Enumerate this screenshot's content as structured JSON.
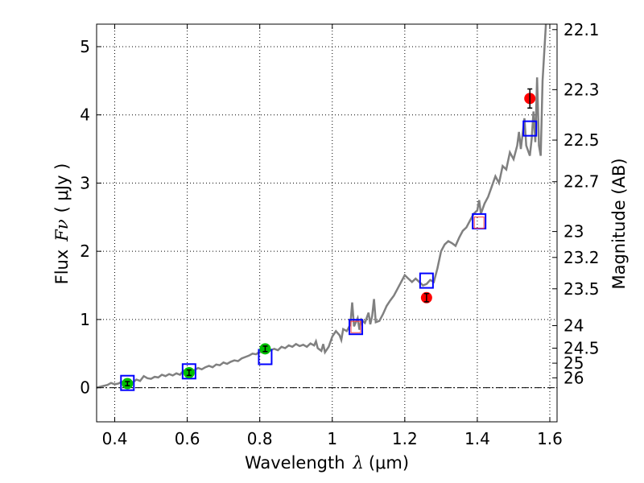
{
  "chart_data": {
    "type": "scatter",
    "xlabel": {
      "prefix": "Wavelength",
      "symbol": "λ",
      "unit": "(μm)"
    },
    "ylabel": {
      "prefix": "Flux",
      "symbol": "Fν",
      "unit": "( μJy )"
    },
    "y2label": "Magnitude (AB)",
    "xlim": [
      0.35,
      1.62
    ],
    "ylim": [
      -0.5,
      5.33
    ],
    "grid": true,
    "x_ticks": [
      0.4,
      0.6,
      0.8,
      1.0,
      1.2,
      1.4,
      1.6
    ],
    "x_tick_labels": [
      "0.4",
      "0.6",
      "0.8",
      "1",
      "1.2",
      "1.4",
      "1.6"
    ],
    "y_ticks": [
      0,
      1,
      2,
      3,
      4,
      5
    ],
    "y_tick_labels": [
      "0",
      "1",
      "2",
      "3",
      "4",
      "5"
    ],
    "mag_ticks": [
      {
        "label": "22.1",
        "flux": 5.25
      },
      {
        "label": "22.3",
        "flux": 4.37
      },
      {
        "label": "22.5",
        "flux": 3.63
      },
      {
        "label": "22.7",
        "flux": 3.02
      },
      {
        "label": "23",
        "flux": 2.29
      },
      {
        "label": "23.2",
        "flux": 1.91
      },
      {
        "label": "23.5",
        "flux": 1.45
      },
      {
        "label": "24",
        "flux": 0.91
      },
      {
        "label": "24.5",
        "flux": 0.58
      },
      {
        "label": "25",
        "flux": 0.36
      },
      {
        "label": "26",
        "flux": 0.145
      }
    ],
    "zero_line": 0,
    "series": [
      {
        "kind": "spectrum",
        "color": "#808080",
        "points": [
          [
            0.35,
            0.0
          ],
          [
            0.365,
            0.02
          ],
          [
            0.38,
            0.04
          ],
          [
            0.39,
            0.07
          ],
          [
            0.4,
            0.05
          ],
          [
            0.41,
            0.06
          ],
          [
            0.42,
            0.09
          ],
          [
            0.43,
            0.06
          ],
          [
            0.44,
            0.1
          ],
          [
            0.45,
            0.08
          ],
          [
            0.46,
            0.12
          ],
          [
            0.47,
            0.1
          ],
          [
            0.48,
            0.17
          ],
          [
            0.49,
            0.14
          ],
          [
            0.5,
            0.13
          ],
          [
            0.51,
            0.16
          ],
          [
            0.52,
            0.15
          ],
          [
            0.53,
            0.19
          ],
          [
            0.54,
            0.17
          ],
          [
            0.55,
            0.2
          ],
          [
            0.56,
            0.18
          ],
          [
            0.57,
            0.21
          ],
          [
            0.58,
            0.19
          ],
          [
            0.59,
            0.25
          ],
          [
            0.6,
            0.22
          ],
          [
            0.61,
            0.24
          ],
          [
            0.62,
            0.26
          ],
          [
            0.63,
            0.29
          ],
          [
            0.64,
            0.27
          ],
          [
            0.65,
            0.3
          ],
          [
            0.66,
            0.32
          ],
          [
            0.67,
            0.3
          ],
          [
            0.68,
            0.34
          ],
          [
            0.69,
            0.33
          ],
          [
            0.7,
            0.37
          ],
          [
            0.71,
            0.35
          ],
          [
            0.72,
            0.38
          ],
          [
            0.73,
            0.4
          ],
          [
            0.74,
            0.39
          ],
          [
            0.75,
            0.43
          ],
          [
            0.76,
            0.45
          ],
          [
            0.77,
            0.47
          ],
          [
            0.78,
            0.5
          ],
          [
            0.79,
            0.49
          ],
          [
            0.8,
            0.53
          ],
          [
            0.81,
            0.51
          ],
          [
            0.82,
            0.52
          ],
          [
            0.83,
            0.55
          ],
          [
            0.84,
            0.57
          ],
          [
            0.85,
            0.55
          ],
          [
            0.86,
            0.6
          ],
          [
            0.87,
            0.58
          ],
          [
            0.88,
            0.62
          ],
          [
            0.89,
            0.6
          ],
          [
            0.9,
            0.64
          ],
          [
            0.91,
            0.61
          ],
          [
            0.92,
            0.63
          ],
          [
            0.93,
            0.6
          ],
          [
            0.94,
            0.65
          ],
          [
            0.95,
            0.62
          ],
          [
            0.955,
            0.68
          ],
          [
            0.96,
            0.58
          ],
          [
            0.97,
            0.54
          ],
          [
            0.975,
            0.64
          ],
          [
            0.98,
            0.52
          ],
          [
            0.99,
            0.6
          ],
          [
            1.0,
            0.75
          ],
          [
            1.01,
            0.83
          ],
          [
            1.02,
            0.77
          ],
          [
            1.025,
            0.7
          ],
          [
            1.03,
            0.86
          ],
          [
            1.04,
            0.83
          ],
          [
            1.05,
            0.93
          ],
          [
            1.055,
            1.25
          ],
          [
            1.06,
            0.9
          ],
          [
            1.07,
            1.02
          ],
          [
            1.075,
            0.85
          ],
          [
            1.08,
            1.0
          ],
          [
            1.09,
            0.95
          ],
          [
            1.1,
            1.1
          ],
          [
            1.105,
            0.93
          ],
          [
            1.11,
            1.05
          ],
          [
            1.115,
            1.3
          ],
          [
            1.12,
            0.96
          ],
          [
            1.13,
            0.98
          ],
          [
            1.14,
            1.08
          ],
          [
            1.15,
            1.2
          ],
          [
            1.16,
            1.28
          ],
          [
            1.17,
            1.35
          ],
          [
            1.18,
            1.45
          ],
          [
            1.19,
            1.55
          ],
          [
            1.2,
            1.65
          ],
          [
            1.21,
            1.6
          ],
          [
            1.22,
            1.55
          ],
          [
            1.23,
            1.6
          ],
          [
            1.24,
            1.55
          ],
          [
            1.25,
            1.5
          ],
          [
            1.26,
            1.52
          ],
          [
            1.27,
            1.58
          ],
          [
            1.28,
            1.55
          ],
          [
            1.29,
            1.75
          ],
          [
            1.3,
            2.0
          ],
          [
            1.31,
            2.1
          ],
          [
            1.32,
            2.15
          ],
          [
            1.33,
            2.12
          ],
          [
            1.34,
            2.08
          ],
          [
            1.35,
            2.2
          ],
          [
            1.36,
            2.3
          ],
          [
            1.37,
            2.35
          ],
          [
            1.38,
            2.45
          ],
          [
            1.39,
            2.55
          ],
          [
            1.4,
            2.6
          ],
          [
            1.405,
            2.75
          ],
          [
            1.41,
            2.55
          ],
          [
            1.42,
            2.7
          ],
          [
            1.43,
            2.8
          ],
          [
            1.44,
            2.95
          ],
          [
            1.45,
            3.1
          ],
          [
            1.46,
            3.0
          ],
          [
            1.47,
            3.25
          ],
          [
            1.48,
            3.2
          ],
          [
            1.49,
            3.45
          ],
          [
            1.5,
            3.35
          ],
          [
            1.51,
            3.55
          ],
          [
            1.515,
            3.75
          ],
          [
            1.52,
            3.5
          ],
          [
            1.53,
            3.95
          ],
          [
            1.535,
            3.55
          ],
          [
            1.545,
            3.4
          ],
          [
            1.55,
            3.65
          ],
          [
            1.555,
            4.05
          ],
          [
            1.56,
            3.6
          ],
          [
            1.565,
            4.55
          ],
          [
            1.57,
            3.55
          ],
          [
            1.575,
            3.4
          ],
          [
            1.58,
            4.5
          ],
          [
            1.59,
            5.4
          ]
        ]
      },
      {
        "kind": "model-boxes",
        "color": "#0000ff",
        "points": [
          {
            "x": 0.435,
            "y": 0.07
          },
          {
            "x": 0.605,
            "y": 0.24
          },
          {
            "x": 0.815,
            "y": 0.45
          },
          {
            "x": 1.065,
            "y": 0.89
          },
          {
            "x": 1.26,
            "y": 1.57
          },
          {
            "x": 1.405,
            "y": 2.44
          },
          {
            "x": 1.545,
            "y": 3.8
          }
        ]
      },
      {
        "kind": "model-boxes-inner",
        "color": "#ff4040",
        "points": [
          {
            "x": 1.065,
            "y": 0.89
          },
          {
            "x": 1.405,
            "y": 2.42
          }
        ]
      },
      {
        "kind": "observed-green",
        "color": "#00c000",
        "points": [
          {
            "x": 0.435,
            "y": 0.06,
            "err": 0.03
          },
          {
            "x": 0.605,
            "y": 0.22,
            "err": 0.04
          },
          {
            "x": 0.815,
            "y": 0.57,
            "err": 0.04
          }
        ]
      },
      {
        "kind": "observed-red",
        "color": "#ff0000",
        "points": [
          {
            "x": 1.26,
            "y": 1.32,
            "err": 0.06
          },
          {
            "x": 1.545,
            "y": 4.24,
            "err": 0.14
          }
        ]
      }
    ]
  }
}
